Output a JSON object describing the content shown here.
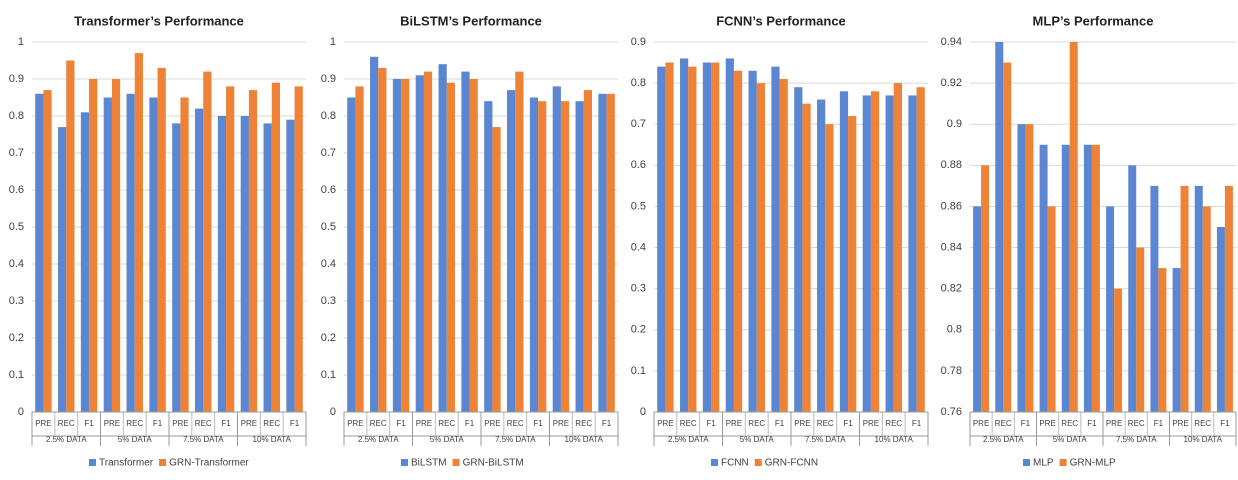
{
  "chart_data": [
    {
      "type": "bar",
      "title": "Transformer’s Performance",
      "categories": [
        "PRE",
        "REC",
        "F1",
        "PRE",
        "REC",
        "F1",
        "PRE",
        "REC",
        "F1",
        "PRE",
        "REC",
        "F1"
      ],
      "groups": [
        "2.5% DATA",
        "5% DATA",
        "7.5% DATA",
        "10% DATA"
      ],
      "series": [
        {
          "name": "Transformer",
          "color": "#5b86d1",
          "values": [
            0.86,
            0.77,
            0.81,
            0.85,
            0.86,
            0.85,
            0.78,
            0.82,
            0.8,
            0.8,
            0.78,
            0.79
          ]
        },
        {
          "name": "GRN-Transformer",
          "color": "#ee8236",
          "values": [
            0.87,
            0.95,
            0.9,
            0.9,
            0.97,
            0.93,
            0.85,
            0.92,
            0.88,
            0.87,
            0.89,
            0.88
          ]
        }
      ],
      "ylim": [
        0,
        1
      ],
      "yticks": [
        0,
        0.1,
        0.2,
        0.3,
        0.4,
        0.5,
        0.6,
        0.7,
        0.8,
        0.9,
        1
      ],
      "grid": true,
      "legend": "bottom"
    },
    {
      "type": "bar",
      "title": "BiLSTM’s Performance",
      "categories": [
        "PRE",
        "REC",
        "F1",
        "PRE",
        "REC",
        "F1",
        "PRE",
        "REC",
        "F1",
        "PRE",
        "REC",
        "F1"
      ],
      "groups": [
        "2.5% DATA",
        "5% DATA",
        "7.5% DATA",
        "10% DATA"
      ],
      "series": [
        {
          "name": "BiLSTM",
          "color": "#5b86d1",
          "values": [
            0.85,
            0.96,
            0.9,
            0.91,
            0.94,
            0.92,
            0.84,
            0.87,
            0.85,
            0.88,
            0.84,
            0.86
          ]
        },
        {
          "name": "GRN-BiLSTM",
          "color": "#ee8236",
          "values": [
            0.88,
            0.93,
            0.9,
            0.92,
            0.89,
            0.9,
            0.77,
            0.92,
            0.84,
            0.84,
            0.87,
            0.86
          ]
        }
      ],
      "ylim": [
        0,
        1
      ],
      "yticks": [
        0,
        0.1,
        0.2,
        0.3,
        0.4,
        0.5,
        0.6,
        0.7,
        0.8,
        0.9,
        1
      ],
      "grid": true,
      "legend": "bottom"
    },
    {
      "type": "bar",
      "title": "FCNN’s Performance",
      "categories": [
        "PRE",
        "REC",
        "F1",
        "PRE",
        "REC",
        "F1",
        "PRE",
        "REC",
        "F1",
        "PRE",
        "REC",
        "F1"
      ],
      "groups": [
        "2.5% DATA",
        "5% DATA",
        "7.5% DATA",
        "10% DATA"
      ],
      "series": [
        {
          "name": "FCNN",
          "color": "#5b86d1",
          "values": [
            0.84,
            0.86,
            0.85,
            0.86,
            0.83,
            0.84,
            0.79,
            0.76,
            0.78,
            0.77,
            0.77,
            0.77
          ]
        },
        {
          "name": "GRN-FCNN",
          "color": "#ee8236",
          "values": [
            0.85,
            0.84,
            0.85,
            0.83,
            0.8,
            0.81,
            0.75,
            0.7,
            0.72,
            0.78,
            0.8,
            0.79
          ]
        }
      ],
      "ylim": [
        0,
        0.9
      ],
      "yticks": [
        0,
        0.1,
        0.2,
        0.3,
        0.4,
        0.5,
        0.6,
        0.7,
        0.8,
        0.9
      ],
      "grid": true,
      "legend": "bottom"
    },
    {
      "type": "bar",
      "title": "MLP’s Performance",
      "categories": [
        "PRE",
        "REC",
        "F1",
        "PRE",
        "REC",
        "F1",
        "PRE",
        "REC",
        "F1",
        "PRE",
        "REC",
        "F1"
      ],
      "groups": [
        "2.5% DATA",
        "5% DATA",
        "7.5% DATA",
        "10% DATA"
      ],
      "series": [
        {
          "name": "MLP",
          "color": "#5b86d1",
          "values": [
            0.86,
            0.94,
            0.9,
            0.89,
            0.89,
            0.89,
            0.86,
            0.88,
            0.87,
            0.83,
            0.87,
            0.85
          ]
        },
        {
          "name": "GRN-MLP",
          "color": "#ee8236",
          "values": [
            0.88,
            0.93,
            0.9,
            0.86,
            0.94,
            0.89,
            0.82,
            0.84,
            0.83,
            0.87,
            0.86,
            0.87
          ]
        }
      ],
      "ylim": [
        0.76,
        0.94
      ],
      "yticks": [
        0.76,
        0.78,
        0.8,
        0.82,
        0.84,
        0.86,
        0.88,
        0.9,
        0.92,
        0.94
      ],
      "grid": true,
      "legend": "bottom"
    }
  ]
}
